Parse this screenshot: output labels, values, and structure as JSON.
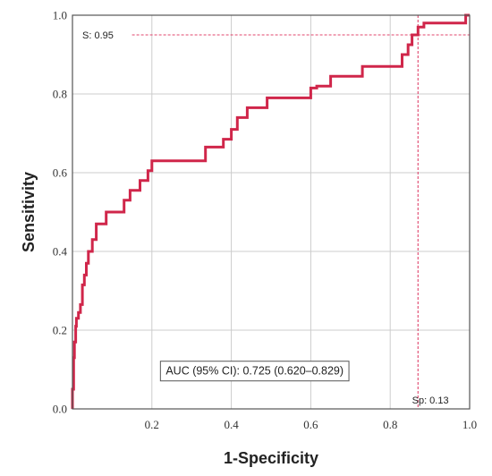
{
  "chart_data": {
    "type": "line",
    "xlabel": "1-Specificity",
    "ylabel": "Sensitivity",
    "xlim": [
      0,
      1
    ],
    "ylim": [
      0,
      1
    ],
    "x_ticks": [
      "0.2",
      "0.4",
      "0.6",
      "0.8",
      "1.0"
    ],
    "y_ticks": [
      "0.0",
      "0.2",
      "0.4",
      "0.6",
      "0.8",
      "1.0"
    ],
    "grid": true,
    "series": [
      {
        "color": "#d0264a",
        "x": [
          0,
          0,
          0.003,
          0.003,
          0.005,
          0.005,
          0.008,
          0.008,
          0.01,
          0.01,
          0.015,
          0.015,
          0.02,
          0.02,
          0.025,
          0.025,
          0.03,
          0.03,
          0.035,
          0.035,
          0.04,
          0.04,
          0.05,
          0.05,
          0.06,
          0.06,
          0.085,
          0.085,
          0.13,
          0.13,
          0.145,
          0.145,
          0.17,
          0.17,
          0.19,
          0.19,
          0.2,
          0.2,
          0.335,
          0.335,
          0.38,
          0.38,
          0.4,
          0.4,
          0.415,
          0.415,
          0.44,
          0.44,
          0.49,
          0.49,
          0.6,
          0.6,
          0.615,
          0.615,
          0.65,
          0.65,
          0.73,
          0.73,
          0.83,
          0.83,
          0.845,
          0.845,
          0.855,
          0.855,
          0.87,
          0.87,
          0.885,
          0.885,
          0.99,
          0.99,
          1.0
        ],
        "y": [
          0,
          0.05,
          0.05,
          0.13,
          0.13,
          0.17,
          0.17,
          0.21,
          0.21,
          0.23,
          0.23,
          0.245,
          0.245,
          0.265,
          0.265,
          0.315,
          0.315,
          0.34,
          0.34,
          0.37,
          0.37,
          0.4,
          0.4,
          0.43,
          0.43,
          0.47,
          0.47,
          0.5,
          0.5,
          0.53,
          0.53,
          0.555,
          0.555,
          0.58,
          0.58,
          0.605,
          0.605,
          0.63,
          0.63,
          0.665,
          0.665,
          0.685,
          0.685,
          0.71,
          0.71,
          0.74,
          0.74,
          0.765,
          0.765,
          0.79,
          0.79,
          0.815,
          0.815,
          0.82,
          0.82,
          0.845,
          0.845,
          0.87,
          0.87,
          0.9,
          0.9,
          0.925,
          0.925,
          0.95,
          0.95,
          0.97,
          0.97,
          0.98,
          0.98,
          1.0,
          1.0
        ]
      }
    ],
    "reference_lines": [
      {
        "orientation": "horizontal",
        "y": 0.95,
        "color": "#e0456c"
      },
      {
        "orientation": "vertical",
        "x": 0.87,
        "color": "#e0456c"
      }
    ],
    "annotations": {
      "sensitivity_label": "S: 0.95",
      "specificity_label": "Sp: 0.13",
      "auc_label": "AUC (95% CI): 0.725 (0.620–0.829)"
    }
  }
}
